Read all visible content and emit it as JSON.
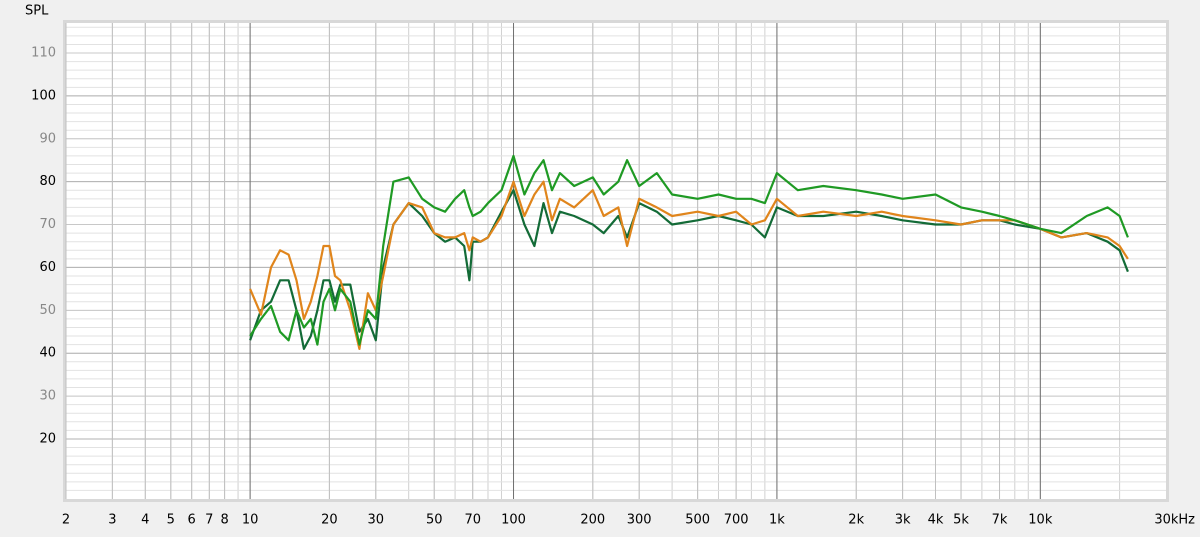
{
  "chart_data": {
    "type": "line",
    "y_label": "SPL",
    "xscale": "log",
    "grid": true,
    "xlim": [
      2,
      30000
    ],
    "ylim": [
      6,
      117
    ],
    "xticks": [
      2,
      3,
      4,
      5,
      6,
      7,
      8,
      10,
      20,
      30,
      50,
      70,
      100,
      200,
      300,
      500,
      700,
      {
        "value": 1000,
        "label": "1k"
      },
      {
        "value": 2000,
        "label": "2k"
      },
      {
        "value": 3000,
        "label": "3k"
      },
      {
        "value": 4000,
        "label": "4k"
      },
      {
        "value": 5000,
        "label": "5k"
      },
      {
        "value": 7000,
        "label": "7k"
      },
      {
        "value": 10000,
        "label": "10k"
      },
      {
        "value": 30000,
        "label": "30kHz"
      }
    ],
    "yticks": [
      20,
      30,
      40,
      50,
      60,
      70,
      80,
      90,
      100,
      110
    ],
    "x": [
      10,
      11,
      12,
      13,
      14,
      15,
      16,
      17,
      18,
      19,
      20,
      21,
      22,
      24,
      26,
      28,
      30,
      32,
      35,
      40,
      45,
      50,
      55,
      60,
      65,
      68,
      70,
      75,
      80,
      90,
      100,
      110,
      120,
      130,
      140,
      150,
      170,
      200,
      220,
      250,
      270,
      300,
      350,
      400,
      500,
      600,
      700,
      800,
      900,
      1000,
      1200,
      1500,
      2000,
      2500,
      3000,
      4000,
      5000,
      6000,
      7000,
      8000,
      10000,
      12000,
      15000,
      18000,
      20000,
      21500
    ],
    "series": [
      {
        "color": "#136b37",
        "values": [
          43,
          50,
          52,
          57,
          57,
          50,
          41,
          44,
          50,
          57,
          57,
          52,
          56,
          56,
          45,
          48,
          43,
          60,
          70,
          75,
          72,
          68,
          66,
          67,
          65,
          57,
          66,
          66,
          67,
          73,
          78,
          70,
          65,
          75,
          68,
          73,
          72,
          70,
          68,
          72,
          67,
          75,
          73,
          70,
          71,
          72,
          71,
          70,
          67,
          74,
          72,
          72,
          73,
          72,
          71,
          70,
          70,
          71,
          71,
          70,
          69,
          67,
          68,
          66,
          64,
          59
        ]
      },
      {
        "color": "#e0851c",
        "values": [
          55,
          49,
          60,
          64,
          63,
          57,
          48,
          52,
          58,
          65,
          65,
          58,
          57,
          50,
          41,
          54,
          50,
          58,
          70,
          75,
          74,
          68,
          67,
          67,
          68,
          64,
          67,
          66,
          67,
          72,
          80,
          72,
          77,
          80,
          71,
          76,
          74,
          78,
          72,
          74,
          65,
          76,
          74,
          72,
          73,
          72,
          73,
          70,
          71,
          76,
          72,
          73,
          72,
          73,
          72,
          71,
          70,
          71,
          71,
          71,
          69,
          67,
          68,
          67,
          65,
          62
        ]
      },
      {
        "color": "#1f9a24",
        "values": [
          44,
          48,
          51,
          45,
          43,
          50,
          46,
          48,
          42,
          52,
          55,
          50,
          55,
          52,
          42,
          50,
          48,
          65,
          80,
          81,
          76,
          74,
          73,
          76,
          78,
          74,
          72,
          73,
          75,
          78,
          86,
          77,
          82,
          85,
          78,
          82,
          79,
          81,
          77,
          80,
          85,
          79,
          82,
          77,
          76,
          77,
          76,
          76,
          75,
          82,
          78,
          79,
          78,
          77,
          76,
          77,
          74,
          73,
          72,
          71,
          69,
          68,
          72,
          74,
          72,
          67
        ]
      }
    ]
  }
}
